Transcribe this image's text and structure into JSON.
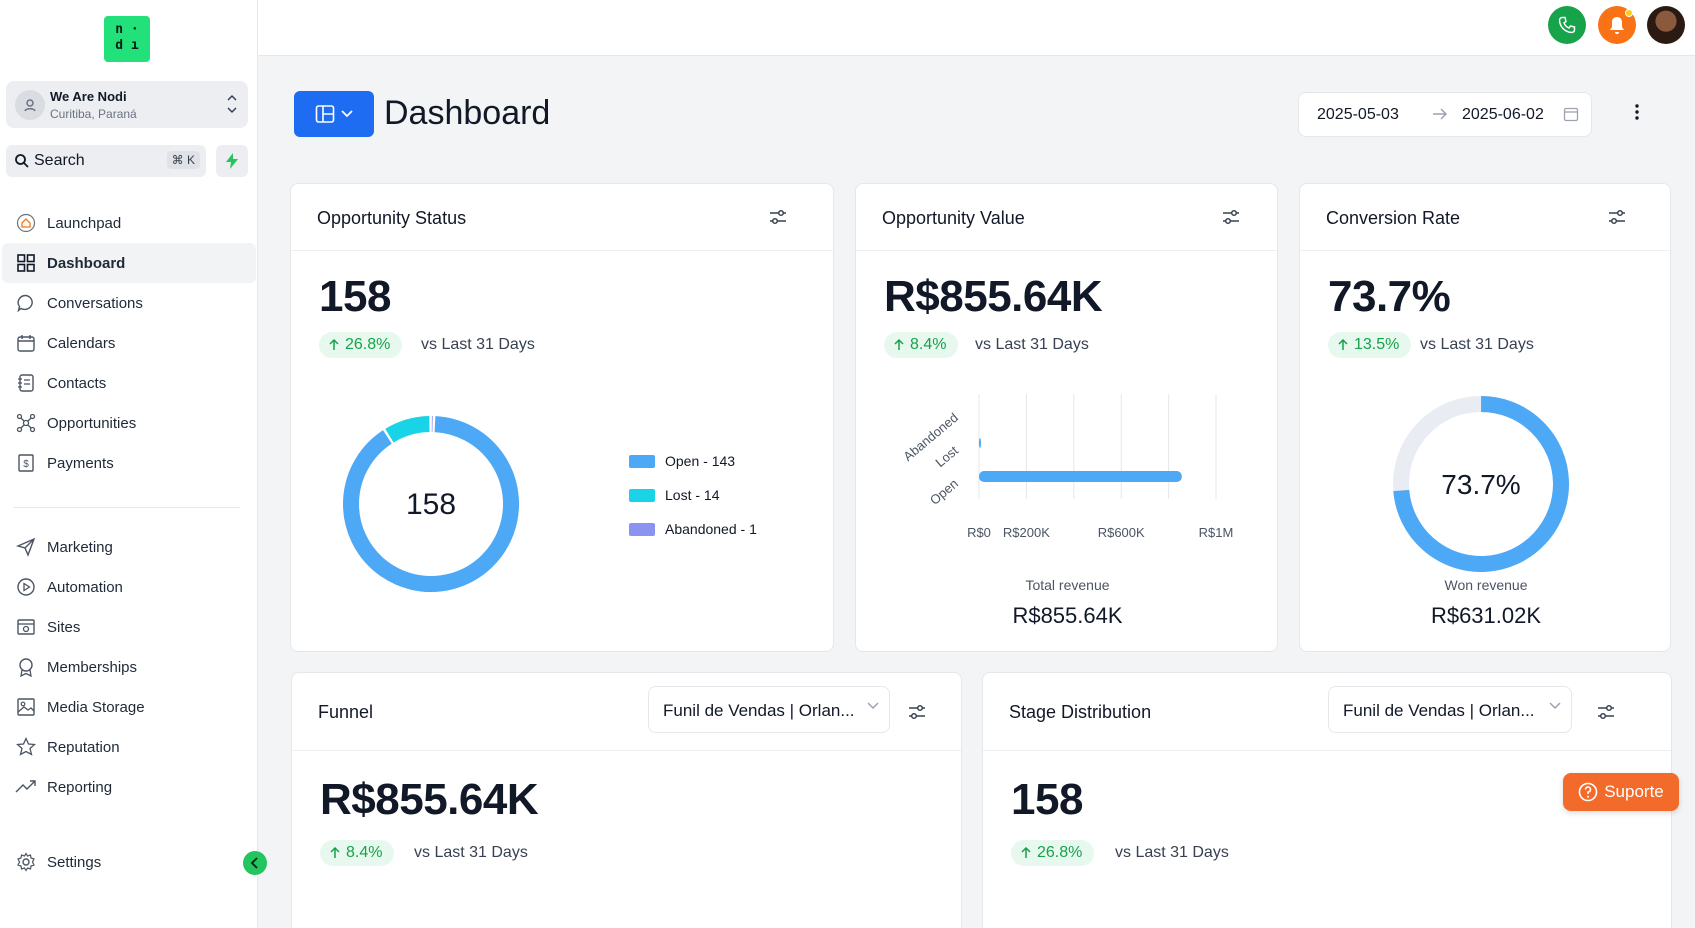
{
  "logo": {
    "line1": "n ·",
    "line2": "d ı"
  },
  "account": {
    "name": "We Are Nodi",
    "location": "Curitiba, Paraná"
  },
  "search": {
    "label": "Search",
    "shortcut": "⌘ K"
  },
  "nav": {
    "primary": [
      {
        "label": "Launchpad",
        "icon": "home-icon"
      },
      {
        "label": "Dashboard",
        "icon": "grid-icon",
        "active": true
      },
      {
        "label": "Conversations",
        "icon": "chat-icon"
      },
      {
        "label": "Calendars",
        "icon": "calendar-icon"
      },
      {
        "label": "Contacts",
        "icon": "contacts-icon"
      },
      {
        "label": "Opportunities",
        "icon": "network-icon"
      },
      {
        "label": "Payments",
        "icon": "payments-icon"
      }
    ],
    "secondary": [
      {
        "label": "Marketing",
        "icon": "send-icon"
      },
      {
        "label": "Automation",
        "icon": "automation-icon"
      },
      {
        "label": "Sites",
        "icon": "sites-icon"
      },
      {
        "label": "Memberships",
        "icon": "award-icon"
      },
      {
        "label": "Media Storage",
        "icon": "image-icon"
      },
      {
        "label": "Reputation",
        "icon": "star-icon"
      },
      {
        "label": "Reporting",
        "icon": "trend-icon"
      }
    ],
    "settings": {
      "label": "Settings",
      "icon": "gear-icon"
    }
  },
  "header": {
    "title": "Dashboard",
    "date_from": "2025-05-03",
    "date_to": "2025-06-02"
  },
  "colors": {
    "accent": "#1d6cf2",
    "open": "#4da8f5",
    "lost": "#19d3e6",
    "abandoned": "#8b93f0",
    "positive": "#16a34a",
    "support": "#f26b2a"
  },
  "opportunity_status": {
    "title": "Opportunity Status",
    "value": "158",
    "change": "26.8%",
    "vs": "vs Last 31 Days",
    "center_label": "158",
    "legend": [
      {
        "label": "Open - 143",
        "color": "#4da8f5"
      },
      {
        "label": "Lost - 14",
        "color": "#19d3e6"
      },
      {
        "label": "Abandoned - 1",
        "color": "#8b93f0"
      }
    ]
  },
  "opportunity_value": {
    "title": "Opportunity Value",
    "value": "R$855.64K",
    "change": "8.4%",
    "vs": "vs Last 31 Days",
    "caption": "Total revenue",
    "caption_value": "R$855.64K"
  },
  "conversion_rate": {
    "title": "Conversion Rate",
    "value": "73.7%",
    "change": "13.5%",
    "vs": "vs Last 31 Days",
    "center_label": "73.7%",
    "caption": "Won revenue",
    "caption_value": "R$631.02K"
  },
  "funnel": {
    "title": "Funnel",
    "dropdown": "Funil de Vendas | Orlan...",
    "value": "R$855.64K",
    "change": "8.4%",
    "vs": "vs Last 31 Days"
  },
  "stage_distribution": {
    "title": "Stage Distribution",
    "dropdown": "Funil de Vendas | Orlan...",
    "value": "158",
    "change": "26.8%",
    "vs": "vs Last 31 Days"
  },
  "support": {
    "label": "Suporte"
  },
  "chart_data": [
    {
      "type": "pie",
      "variant": "donut",
      "categories": [
        "Open",
        "Lost",
        "Abandoned"
      ],
      "values": [
        143,
        14,
        1
      ]
    },
    {
      "type": "bar",
      "orientation": "horizontal",
      "categories": [
        "Open",
        "Lost",
        "Abandoned"
      ],
      "values": [
        855640,
        1500,
        0
      ],
      "x_ticks": [
        "R$0",
        "R$200K",
        "R$600K",
        "R$1M"
      ],
      "xlim": [
        0,
        1000000
      ],
      "grid": true
    },
    {
      "type": "pie",
      "variant": "gauge",
      "values": [
        73.7,
        26.3
      ]
    }
  ]
}
